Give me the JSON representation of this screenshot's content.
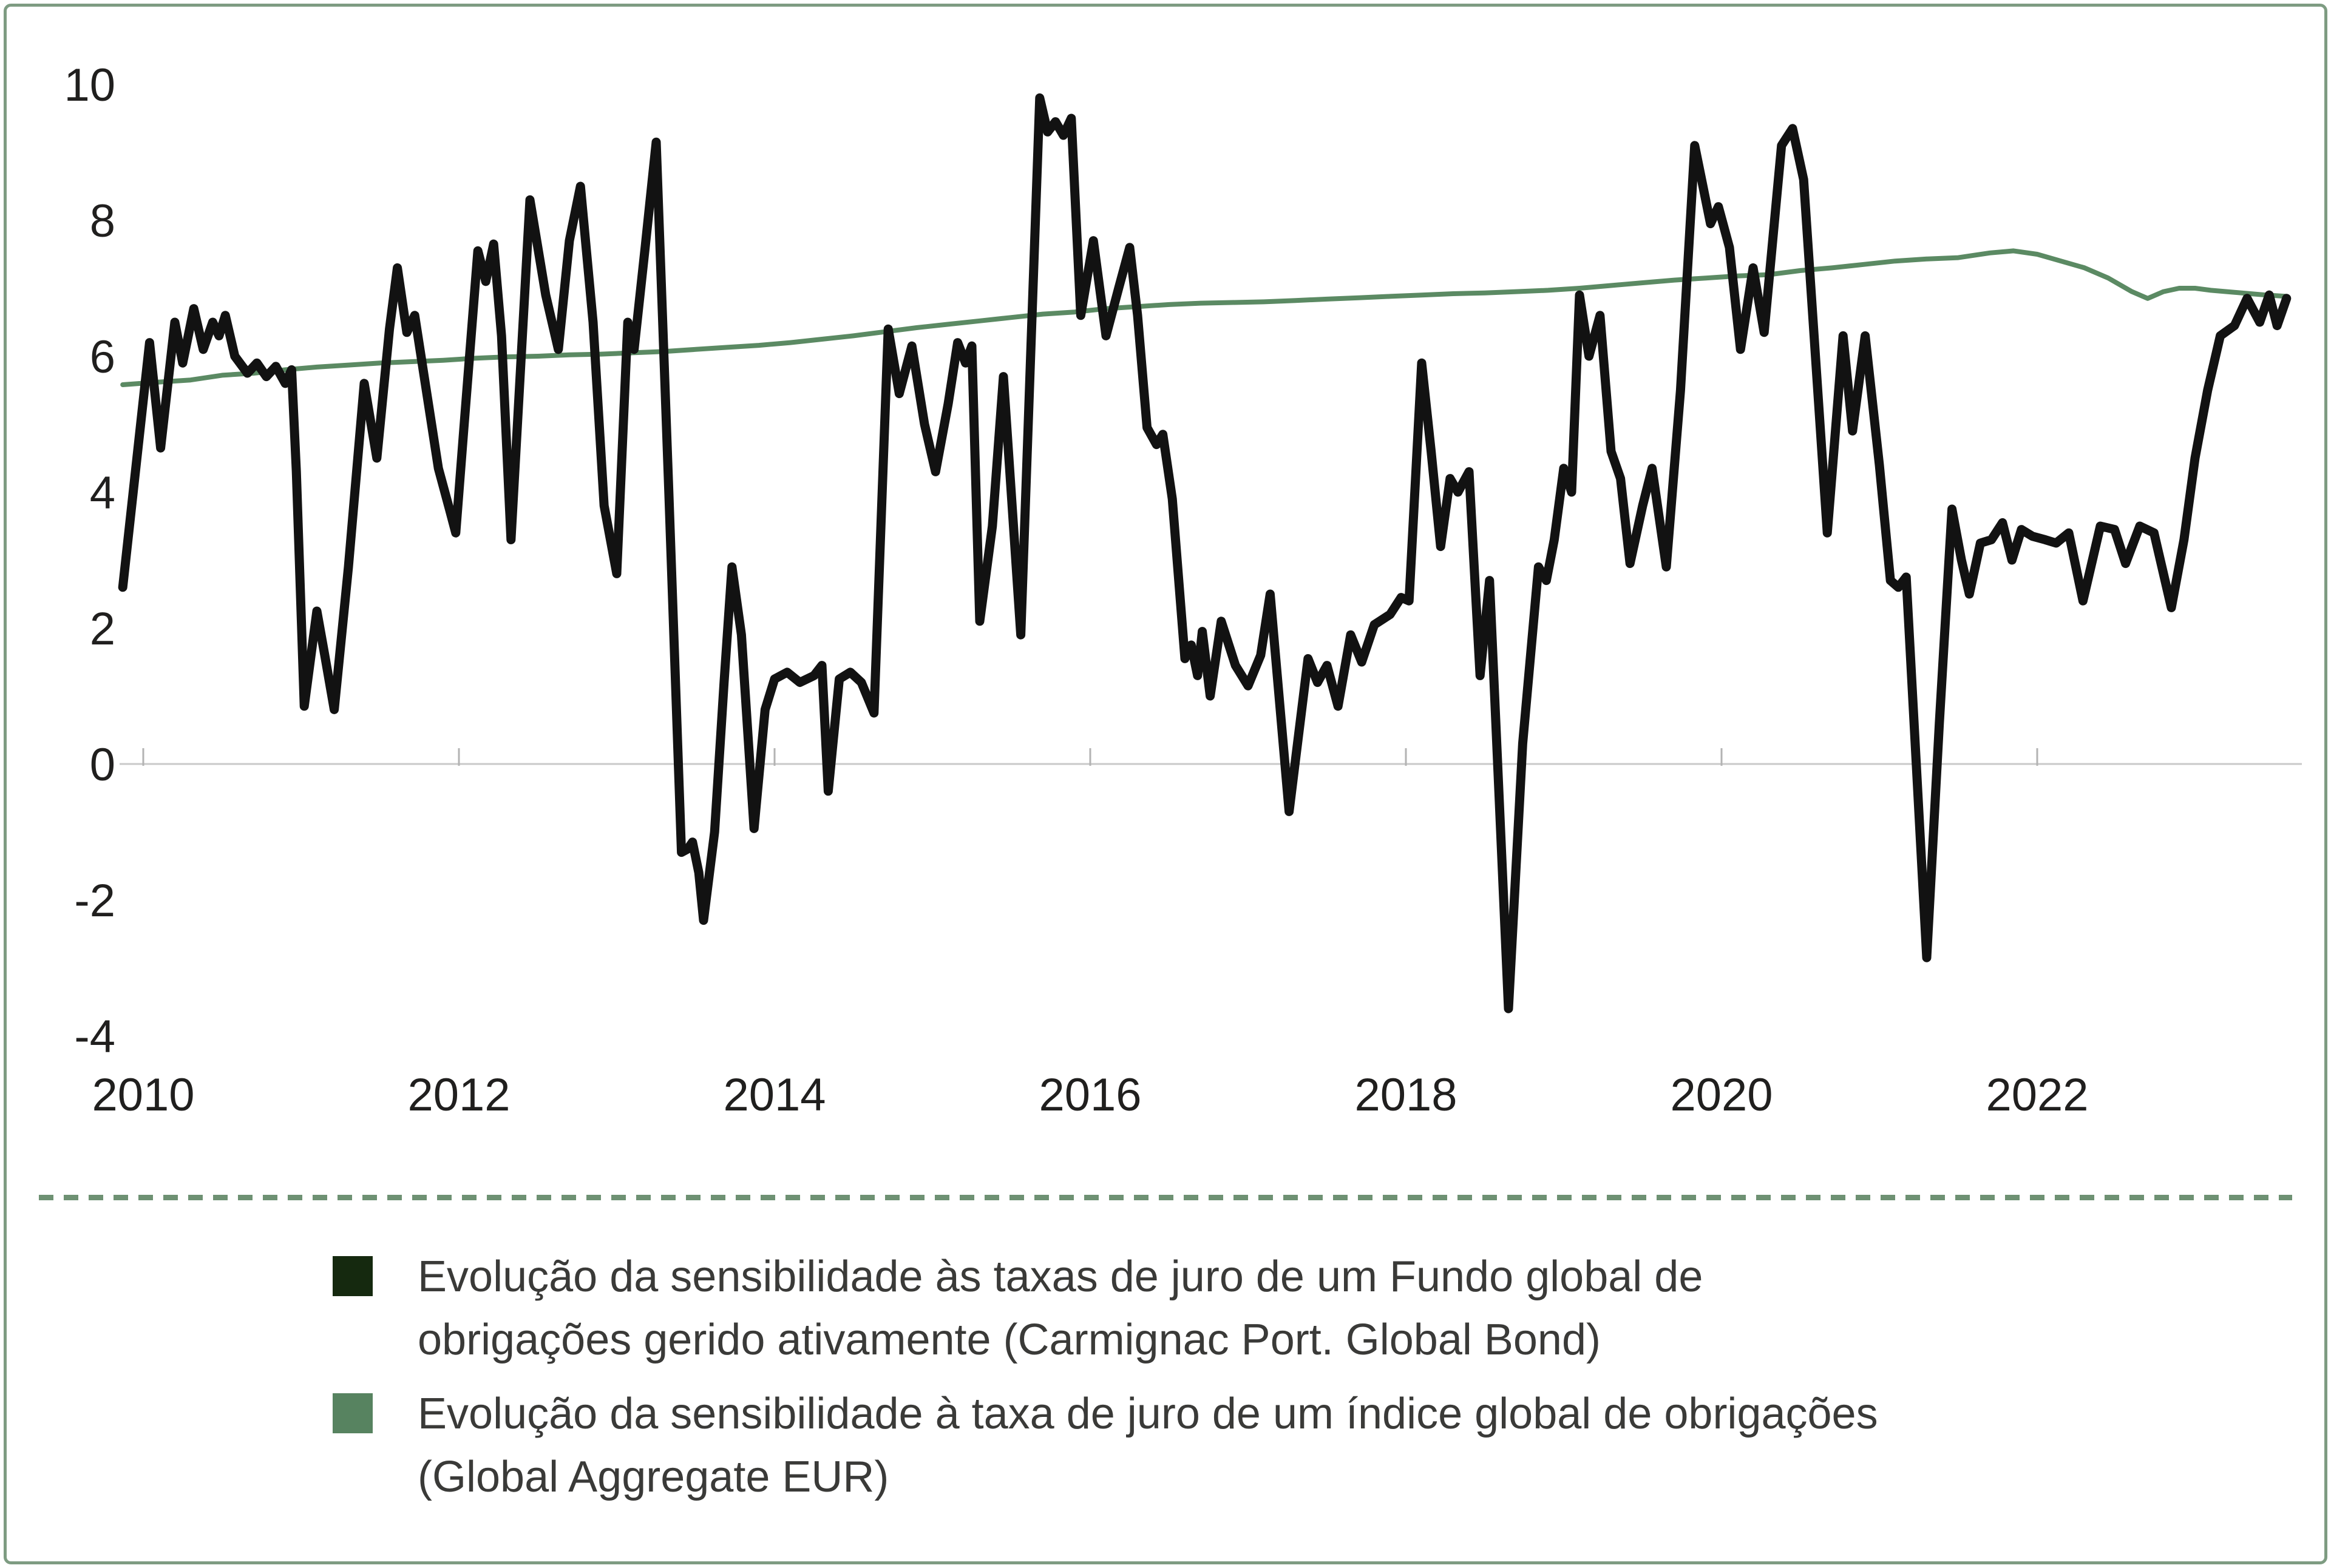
{
  "frame": {
    "border_color": "#7e9c82",
    "background": "#ffffff"
  },
  "separator": {
    "color": "#6e9173",
    "style": "dashed"
  },
  "chart_data": {
    "type": "line",
    "title": "",
    "xlabel": "",
    "ylabel": "",
    "x_axis": {
      "ticks": [
        2010,
        2012,
        2014,
        2016,
        2018,
        2020,
        2022
      ],
      "range": [
        2009.85,
        2023.68
      ],
      "gridlines": false
    },
    "y_axis": {
      "ticks": [
        10,
        8,
        6,
        4,
        2,
        0,
        -2,
        -4
      ],
      "range": [
        -4.6,
        10.7
      ],
      "zero_gridline": true
    },
    "grid": {
      "zero_line_color": "#c9c9c9",
      "tick_color": "#b3b3b3",
      "axis_label_color": "#201f1e"
    },
    "legend_position": "bottom-left",
    "series": [
      {
        "name": "Evolução da sensibilidade às taxas de juro de um Fundo global de obrigações gerido ativamente (Carmignac Port. Global Bond)",
        "color": "#121212",
        "stroke_width": 15,
        "points": [
          [
            2009.87,
            2.6
          ],
          [
            2010.04,
            6.2
          ],
          [
            2010.11,
            4.65
          ],
          [
            2010.2,
            6.5
          ],
          [
            2010.25,
            5.9
          ],
          [
            2010.32,
            6.7
          ],
          [
            2010.38,
            6.1
          ],
          [
            2010.44,
            6.5
          ],
          [
            2010.48,
            6.3
          ],
          [
            2010.52,
            6.6
          ],
          [
            2010.58,
            6.0
          ],
          [
            2010.66,
            5.75
          ],
          [
            2010.72,
            5.9
          ],
          [
            2010.78,
            5.7
          ],
          [
            2010.84,
            5.85
          ],
          [
            2010.9,
            5.6
          ],
          [
            2010.94,
            5.8
          ],
          [
            2010.97,
            4.3
          ],
          [
            2011.02,
            0.85
          ],
          [
            2011.1,
            2.25
          ],
          [
            2011.15,
            1.6
          ],
          [
            2011.21,
            0.8
          ],
          [
            2011.3,
            2.9
          ],
          [
            2011.4,
            5.6
          ],
          [
            2011.48,
            4.5
          ],
          [
            2011.56,
            6.4
          ],
          [
            2011.61,
            7.3
          ],
          [
            2011.67,
            6.35
          ],
          [
            2011.72,
            6.6
          ],
          [
            2011.8,
            5.4
          ],
          [
            2011.87,
            4.35
          ],
          [
            2011.94,
            3.75
          ],
          [
            2011.98,
            3.4
          ],
          [
            2012.03,
            4.9
          ],
          [
            2012.12,
            7.55
          ],
          [
            2012.17,
            7.1
          ],
          [
            2012.22,
            7.65
          ],
          [
            2012.27,
            6.3
          ],
          [
            2012.33,
            3.3
          ],
          [
            2012.45,
            8.3
          ],
          [
            2012.55,
            6.9
          ],
          [
            2012.63,
            6.1
          ],
          [
            2012.7,
            7.7
          ],
          [
            2012.77,
            8.5
          ],
          [
            2012.85,
            6.5
          ],
          [
            2012.92,
            3.8
          ],
          [
            2013.0,
            2.8
          ],
          [
            2013.07,
            6.5
          ],
          [
            2013.11,
            6.1
          ],
          [
            2013.18,
            7.6
          ],
          [
            2013.25,
            9.15
          ],
          [
            2013.33,
            4.0
          ],
          [
            2013.41,
            -1.3
          ],
          [
            2013.45,
            -1.25
          ],
          [
            2013.48,
            -1.15
          ],
          [
            2013.52,
            -1.6
          ],
          [
            2013.55,
            -2.3
          ],
          [
            2013.62,
            -1.0
          ],
          [
            2013.68,
            1.2
          ],
          [
            2013.73,
            2.9
          ],
          [
            2013.79,
            1.9
          ],
          [
            2013.87,
            -0.95
          ],
          [
            2013.94,
            0.8
          ],
          [
            2014.0,
            1.25
          ],
          [
            2014.08,
            1.35
          ],
          [
            2014.16,
            1.2
          ],
          [
            2014.25,
            1.3
          ],
          [
            2014.3,
            1.45
          ],
          [
            2014.34,
            -0.4
          ],
          [
            2014.41,
            1.25
          ],
          [
            2014.48,
            1.35
          ],
          [
            2014.55,
            1.2
          ],
          [
            2014.63,
            0.75
          ],
          [
            2014.72,
            6.4
          ],
          [
            2014.79,
            5.45
          ],
          [
            2014.87,
            6.15
          ],
          [
            2014.95,
            5.0
          ],
          [
            2015.02,
            4.3
          ],
          [
            2015.1,
            5.3
          ],
          [
            2015.16,
            6.2
          ],
          [
            2015.21,
            5.9
          ],
          [
            2015.25,
            6.15
          ],
          [
            2015.3,
            2.1
          ],
          [
            2015.38,
            3.5
          ],
          [
            2015.45,
            5.7
          ],
          [
            2015.56,
            1.9
          ],
          [
            2015.68,
            9.8
          ],
          [
            2015.73,
            9.3
          ],
          [
            2015.78,
            9.45
          ],
          [
            2015.83,
            9.25
          ],
          [
            2015.88,
            9.5
          ],
          [
            2015.94,
            6.6
          ],
          [
            2016.02,
            7.7
          ],
          [
            2016.1,
            6.3
          ],
          [
            2016.18,
            7.0
          ],
          [
            2016.25,
            7.6
          ],
          [
            2016.3,
            6.6
          ],
          [
            2016.36,
            4.95
          ],
          [
            2016.42,
            4.7
          ],
          [
            2016.46,
            4.85
          ],
          [
            2016.52,
            3.9
          ],
          [
            2016.6,
            1.55
          ],
          [
            2016.64,
            1.75
          ],
          [
            2016.68,
            1.3
          ],
          [
            2016.71,
            1.95
          ],
          [
            2016.76,
            1.0
          ],
          [
            2016.83,
            2.1
          ],
          [
            2016.92,
            1.45
          ],
          [
            2017.0,
            1.15
          ],
          [
            2017.08,
            1.6
          ],
          [
            2017.14,
            2.5
          ],
          [
            2017.26,
            -0.7
          ],
          [
            2017.38,
            1.55
          ],
          [
            2017.44,
            1.2
          ],
          [
            2017.5,
            1.45
          ],
          [
            2017.57,
            0.85
          ],
          [
            2017.65,
            1.9
          ],
          [
            2017.72,
            1.5
          ],
          [
            2017.8,
            2.05
          ],
          [
            2017.9,
            2.2
          ],
          [
            2017.97,
            2.45
          ],
          [
            2018.02,
            2.4
          ],
          [
            2018.1,
            5.9
          ],
          [
            2018.16,
            4.6
          ],
          [
            2018.22,
            3.2
          ],
          [
            2018.28,
            4.2
          ],
          [
            2018.33,
            4.0
          ],
          [
            2018.4,
            4.3
          ],
          [
            2018.47,
            1.3
          ],
          [
            2018.53,
            2.7
          ],
          [
            2018.65,
            -3.6
          ],
          [
            2018.74,
            0.3
          ],
          [
            2018.84,
            2.9
          ],
          [
            2018.89,
            2.7
          ],
          [
            2018.94,
            3.3
          ],
          [
            2019.0,
            4.35
          ],
          [
            2019.05,
            4.0
          ],
          [
            2019.1,
            6.9
          ],
          [
            2019.16,
            6.0
          ],
          [
            2019.23,
            6.6
          ],
          [
            2019.3,
            4.6
          ],
          [
            2019.36,
            4.2
          ],
          [
            2019.42,
            2.95
          ],
          [
            2019.5,
            3.8
          ],
          [
            2019.56,
            4.35
          ],
          [
            2019.65,
            2.9
          ],
          [
            2019.74,
            5.5
          ],
          [
            2019.83,
            9.1
          ],
          [
            2019.93,
            7.95
          ],
          [
            2019.98,
            8.2
          ],
          [
            2020.05,
            7.6
          ],
          [
            2020.12,
            6.1
          ],
          [
            2020.2,
            7.3
          ],
          [
            2020.27,
            6.35
          ],
          [
            2020.38,
            9.1
          ],
          [
            2020.45,
            9.35
          ],
          [
            2020.52,
            8.6
          ],
          [
            2020.67,
            3.4
          ],
          [
            2020.77,
            6.3
          ],
          [
            2020.83,
            4.9
          ],
          [
            2020.91,
            6.3
          ],
          [
            2021.0,
            4.4
          ],
          [
            2021.07,
            2.7
          ],
          [
            2021.12,
            2.6
          ],
          [
            2021.17,
            2.75
          ],
          [
            2021.3,
            -2.85
          ],
          [
            2021.38,
            0.6
          ],
          [
            2021.46,
            3.75
          ],
          [
            2021.52,
            3.0
          ],
          [
            2021.57,
            2.5
          ],
          [
            2021.64,
            3.25
          ],
          [
            2021.71,
            3.3
          ],
          [
            2021.78,
            3.55
          ],
          [
            2021.84,
            3.0
          ],
          [
            2021.9,
            3.45
          ],
          [
            2021.97,
            3.35
          ],
          [
            2022.05,
            3.3
          ],
          [
            2022.12,
            3.25
          ],
          [
            2022.2,
            3.4
          ],
          [
            2022.29,
            2.4
          ],
          [
            2022.4,
            3.5
          ],
          [
            2022.49,
            3.45
          ],
          [
            2022.56,
            2.95
          ],
          [
            2022.65,
            3.5
          ],
          [
            2022.74,
            3.4
          ],
          [
            2022.85,
            2.3
          ],
          [
            2022.93,
            3.3
          ],
          [
            2023.0,
            4.5
          ],
          [
            2023.08,
            5.5
          ],
          [
            2023.16,
            6.3
          ],
          [
            2023.25,
            6.45
          ],
          [
            2023.33,
            6.85
          ],
          [
            2023.41,
            6.5
          ],
          [
            2023.47,
            6.9
          ],
          [
            2023.52,
            6.45
          ],
          [
            2023.58,
            6.85
          ]
        ]
      },
      {
        "name": "Evolução da sensibilidade à taxa de juro de um índice global de obrigações (Global Aggregate EUR)",
        "color": "#5b8a63",
        "stroke_width": 8,
        "points": [
          [
            2009.87,
            5.58
          ],
          [
            2010.1,
            5.62
          ],
          [
            2010.3,
            5.65
          ],
          [
            2010.5,
            5.72
          ],
          [
            2010.7,
            5.75
          ],
          [
            2010.9,
            5.8
          ],
          [
            2011.1,
            5.84
          ],
          [
            2011.3,
            5.87
          ],
          [
            2011.5,
            5.9
          ],
          [
            2011.7,
            5.92
          ],
          [
            2011.9,
            5.94
          ],
          [
            2012.1,
            5.97
          ],
          [
            2012.3,
            5.99
          ],
          [
            2012.5,
            6.0
          ],
          [
            2012.7,
            6.02
          ],
          [
            2012.9,
            6.03
          ],
          [
            2013.1,
            6.05
          ],
          [
            2013.3,
            6.07
          ],
          [
            2013.5,
            6.1
          ],
          [
            2013.7,
            6.13
          ],
          [
            2013.9,
            6.16
          ],
          [
            2014.1,
            6.2
          ],
          [
            2014.3,
            6.25
          ],
          [
            2014.5,
            6.3
          ],
          [
            2014.7,
            6.36
          ],
          [
            2014.9,
            6.42
          ],
          [
            2015.1,
            6.47
          ],
          [
            2015.3,
            6.52
          ],
          [
            2015.5,
            6.57
          ],
          [
            2015.7,
            6.62
          ],
          [
            2015.9,
            6.65
          ],
          [
            2016.1,
            6.7
          ],
          [
            2016.3,
            6.73
          ],
          [
            2016.5,
            6.76
          ],
          [
            2016.7,
            6.78
          ],
          [
            2016.9,
            6.79
          ],
          [
            2017.1,
            6.8
          ],
          [
            2017.3,
            6.82
          ],
          [
            2017.5,
            6.84
          ],
          [
            2017.7,
            6.86
          ],
          [
            2017.9,
            6.88
          ],
          [
            2018.1,
            6.9
          ],
          [
            2018.3,
            6.92
          ],
          [
            2018.5,
            6.93
          ],
          [
            2018.7,
            6.95
          ],
          [
            2018.9,
            6.97
          ],
          [
            2019.1,
            7.0
          ],
          [
            2019.3,
            7.04
          ],
          [
            2019.5,
            7.08
          ],
          [
            2019.7,
            7.12
          ],
          [
            2019.9,
            7.15
          ],
          [
            2020.1,
            7.18
          ],
          [
            2020.3,
            7.2
          ],
          [
            2020.5,
            7.26
          ],
          [
            2020.7,
            7.3
          ],
          [
            2020.9,
            7.35
          ],
          [
            2021.1,
            7.4
          ],
          [
            2021.3,
            7.43
          ],
          [
            2021.5,
            7.45
          ],
          [
            2021.7,
            7.52
          ],
          [
            2021.85,
            7.55
          ],
          [
            2022.0,
            7.5
          ],
          [
            2022.15,
            7.4
          ],
          [
            2022.3,
            7.3
          ],
          [
            2022.45,
            7.15
          ],
          [
            2022.6,
            6.95
          ],
          [
            2022.7,
            6.85
          ],
          [
            2022.8,
            6.95
          ],
          [
            2022.9,
            7.0
          ],
          [
            2023.0,
            7.0
          ],
          [
            2023.1,
            6.97
          ],
          [
            2023.2,
            6.95
          ],
          [
            2023.35,
            6.92
          ],
          [
            2023.45,
            6.9
          ],
          [
            2023.58,
            6.88
          ]
        ]
      }
    ]
  },
  "legend": {
    "items": [
      {
        "swatch_color": "#15290f",
        "line1": "Evolução da sensibilidade às taxas de juro de um Fundo global de",
        "line2": "obrigações gerido ativamente (Carmignac Port. Global Bond)"
      },
      {
        "swatch_color": "#578360",
        "line1": "Evolução da sensibilidade à taxa de juro de um índice global de obrigações",
        "line2": "(Global Aggregate EUR)"
      }
    ]
  }
}
